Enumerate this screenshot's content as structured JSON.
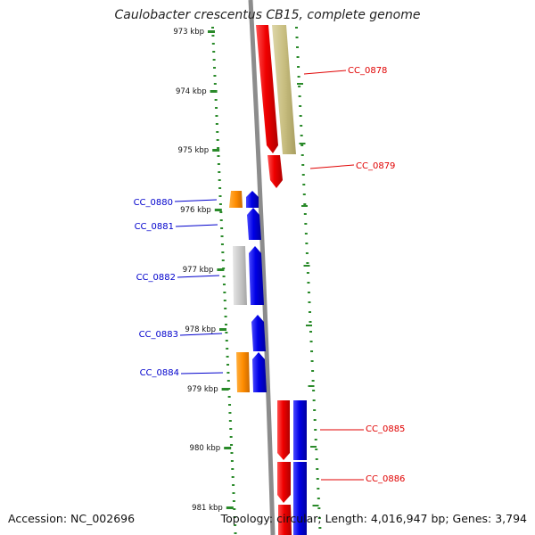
{
  "title": "Caulobacter crescentus CB15, complete genome",
  "footer": {
    "accession_label": "Accession: NC_002696",
    "summary": "Topology: circular; Length: 4,016,947 bp; Genes: 3,794"
  },
  "colors": {
    "backbone": "#8c8c8c",
    "ticks": "#2a8a2a",
    "red": "#f00000",
    "blue": "#0000e6",
    "orange": "#ff8c00",
    "gray": "#c8c8c8",
    "olive": "#c8be80",
    "label_red": "#e00000",
    "label_blue": "#0000cc"
  },
  "kbp_ticks": [
    "973 kbp",
    "974 kbp",
    "975 kbp",
    "976 kbp",
    "977 kbp",
    "978 kbp",
    "979 kbp",
    "980 kbp",
    "981 kbp"
  ],
  "genes": [
    {
      "label": "CC_0878",
      "side": "right",
      "color": "red"
    },
    {
      "label": "CC_0879",
      "side": "right",
      "color": "red"
    },
    {
      "label": "CC_0880",
      "side": "left",
      "color": "blue"
    },
    {
      "label": "CC_0881",
      "side": "left",
      "color": "blue"
    },
    {
      "label": "CC_0882",
      "side": "left",
      "color": "blue"
    },
    {
      "label": "CC_0883",
      "side": "left",
      "color": "blue"
    },
    {
      "label": "CC_0884",
      "side": "left",
      "color": "blue"
    },
    {
      "label": "CC_0885",
      "side": "right",
      "color": "red"
    },
    {
      "label": "CC_0886",
      "side": "right",
      "color": "red"
    }
  ]
}
